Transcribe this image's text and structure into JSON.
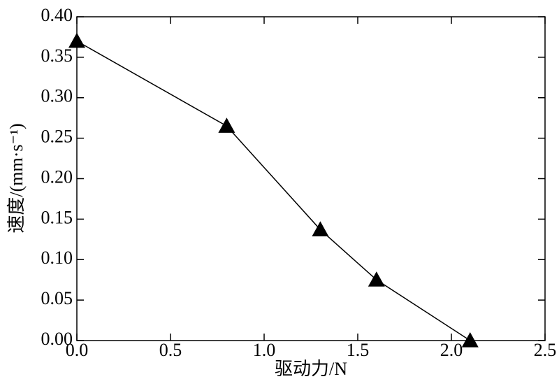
{
  "chart_data": {
    "type": "line",
    "x_label": "驱动力/N",
    "y_label": "速度/(mm·s⁻¹)",
    "x": [
      0.0,
      0.8,
      1.3,
      1.6,
      2.1
    ],
    "values": [
      0.37,
      0.265,
      0.137,
      0.075,
      0.0
    ],
    "color": "#000000",
    "marker": "triangle",
    "xlim": [
      0,
      2.5
    ],
    "xticks": [
      {
        "value": 0,
        "label": "0.0"
      },
      0.5,
      {
        "value": 1,
        "label": "1.0"
      },
      1.5,
      {
        "value": 2,
        "label": "2.0"
      },
      2.5
    ],
    "ylim": [
      0,
      0.4
    ],
    "yticks": [
      {
        "value": 0,
        "label": "0.00"
      },
      0.05,
      {
        "value": 0.1,
        "label": "0.10"
      },
      0.15,
      {
        "value": 0.2,
        "label": "0.20"
      },
      0.25,
      {
        "value": 0.3,
        "label": "0.30"
      },
      0.35,
      {
        "value": 0.4,
        "label": "0.40"
      }
    ],
    "grid": false
  }
}
